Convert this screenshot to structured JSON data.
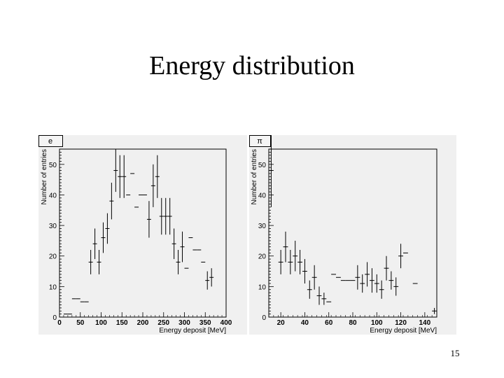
{
  "slide": {
    "title": "Energy distribution",
    "page_number": "15"
  },
  "chart_data": [
    {
      "type": "scatter",
      "label": "e",
      "xlabel": "Energy deposit [MeV]",
      "ylabel": "Number of entries",
      "xlim": [
        0,
        400
      ],
      "ylim": [
        0,
        55
      ],
      "xticks": [
        0,
        50,
        100,
        150,
        200,
        250,
        300,
        350,
        400
      ],
      "yticks": [
        0,
        10,
        20,
        30,
        40,
        50
      ],
      "bin_width": 10,
      "x": [
        5,
        15,
        25,
        35,
        45,
        55,
        65,
        75,
        85,
        95,
        105,
        115,
        125,
        135,
        145,
        155,
        165,
        175,
        185,
        195,
        205,
        215,
        225,
        235,
        245,
        255,
        265,
        275,
        285,
        295,
        305,
        315,
        325,
        335,
        345,
        355,
        365,
        375,
        385,
        395
      ],
      "y": [
        0,
        1,
        1,
        6,
        6,
        5,
        5,
        18,
        24,
        18,
        26,
        29,
        38,
        48,
        46,
        46,
        40,
        47,
        36,
        40,
        40,
        32,
        43,
        46,
        33,
        33,
        33,
        24,
        18,
        23,
        16,
        26,
        22,
        22,
        18,
        12,
        13,
        0,
        0,
        0
      ],
      "yerr": [
        0,
        0,
        0,
        0,
        0,
        0,
        0,
        4,
        5,
        4,
        5,
        5,
        6,
        7,
        7,
        7,
        0,
        0,
        0,
        0,
        0,
        6,
        7,
        7,
        6,
        6,
        6,
        5,
        4,
        5,
        0,
        0,
        0,
        0,
        0,
        3,
        3,
        0,
        0,
        0
      ]
    },
    {
      "type": "scatter",
      "label": "π",
      "xlabel": "Energy deposit [MeV]",
      "ylabel": "Number of entries",
      "xlim": [
        10,
        150
      ],
      "ylim": [
        0,
        55
      ],
      "xticks": [
        20,
        40,
        60,
        80,
        100,
        120,
        140
      ],
      "yticks": [
        0,
        10,
        20,
        30,
        40,
        50
      ],
      "bin_width": 4,
      "x": [
        12,
        16,
        20,
        24,
        28,
        32,
        36,
        40,
        44,
        48,
        52,
        56,
        60,
        64,
        68,
        72,
        76,
        80,
        84,
        88,
        92,
        96,
        100,
        104,
        108,
        112,
        116,
        120,
        124,
        128,
        132,
        136,
        140,
        144,
        148
      ],
      "y": [
        48,
        0,
        18,
        23,
        18,
        20,
        18,
        15,
        9,
        13,
        7,
        6,
        5,
        14,
        13,
        12,
        12,
        12,
        13,
        11,
        14,
        12,
        11,
        9,
        16,
        12,
        10,
        20,
        21,
        0,
        11,
        0,
        0,
        0,
        2
      ],
      "yerr": [
        12,
        0,
        4,
        5,
        4,
        5,
        4,
        4,
        3,
        4,
        3,
        2,
        0,
        0,
        0,
        0,
        0,
        0,
        4,
        3,
        4,
        4,
        3,
        3,
        4,
        3,
        3,
        4,
        0,
        0,
        0,
        0,
        0,
        0,
        1
      ]
    }
  ]
}
